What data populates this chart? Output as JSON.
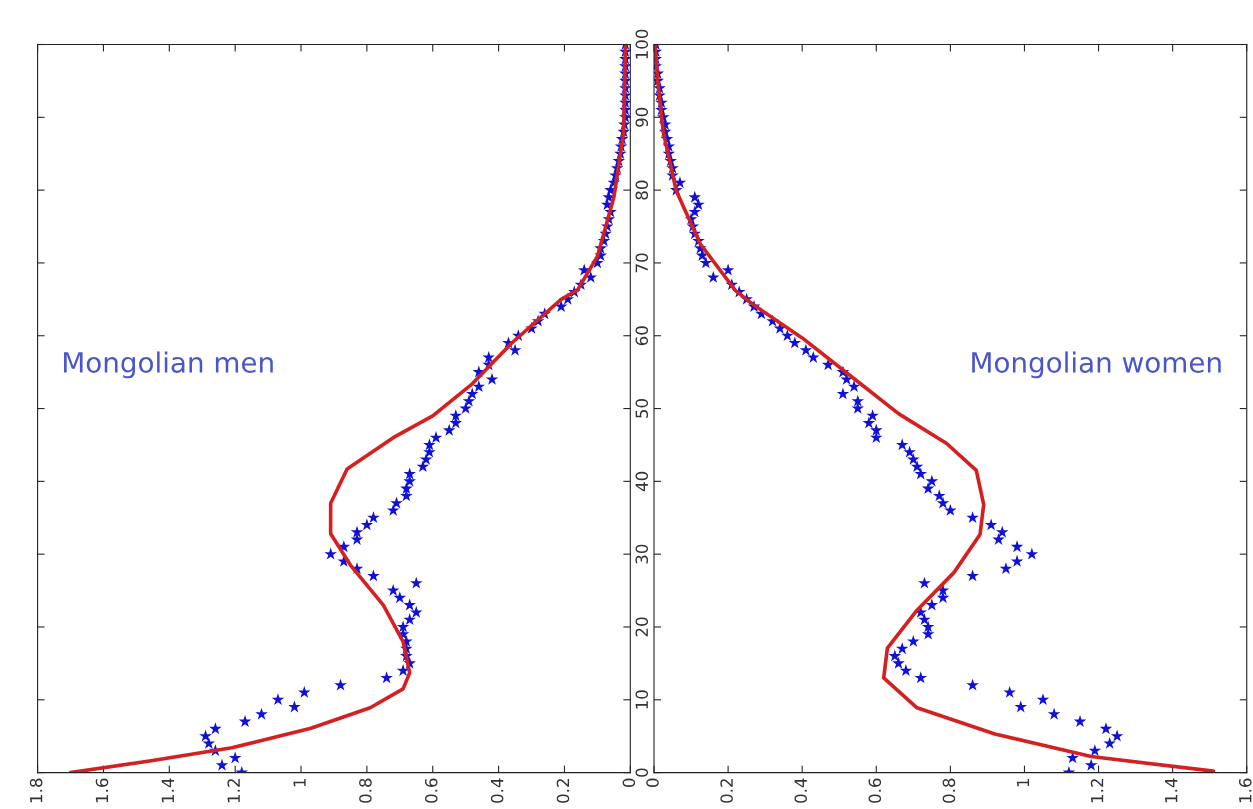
{
  "chart_data": [
    {
      "type": "scatter",
      "orientation": "horizontal",
      "xlim": [
        1.8,
        0
      ],
      "xticks": [
        1.8,
        1.6,
        1.4,
        1.2,
        1,
        0.8,
        0.6,
        0.4,
        0.2,
        0
      ],
      "ylim": [
        0,
        100
      ],
      "yticks": [
        0,
        10,
        20,
        30,
        40,
        50,
        60,
        70,
        80,
        90,
        100
      ],
      "grid": false,
      "legend": false,
      "marker": "star",
      "annotations": [
        "Mongolian men"
      ],
      "series": [
        {
          "color": "#1010d8",
          "x": [
            0,
            1,
            2,
            3,
            4,
            5,
            6,
            7,
            8,
            9,
            10,
            11,
            12,
            13,
            14,
            15,
            16,
            17,
            18,
            19,
            20,
            21,
            22,
            23,
            24,
            25,
            26,
            27,
            28,
            29,
            30,
            31,
            32,
            33,
            34,
            35,
            36,
            37,
            38,
            39,
            40,
            41,
            42,
            43,
            44,
            45,
            46,
            47,
            48,
            49,
            50,
            51,
            52,
            53,
            54,
            55,
            56,
            57,
            58,
            59,
            60,
            61,
            62,
            63,
            64,
            65,
            66,
            67,
            68,
            69,
            70,
            71,
            72,
            73,
            74,
            75,
            76,
            77,
            78,
            79,
            80,
            81,
            82,
            83,
            84,
            85,
            86,
            87,
            88,
            89,
            90,
            91,
            92,
            93,
            94,
            95,
            96,
            97,
            98,
            99,
            100
          ],
          "values": [
            1.18,
            1.24,
            1.2,
            1.26,
            1.28,
            1.29,
            1.26,
            1.17,
            1.12,
            1.02,
            1.07,
            0.99,
            0.88,
            0.74,
            0.69,
            0.67,
            0.68,
            0.68,
            0.68,
            0.69,
            0.69,
            0.67,
            0.65,
            0.67,
            0.7,
            0.72,
            0.65,
            0.78,
            0.83,
            0.87,
            0.91,
            0.87,
            0.83,
            0.83,
            0.8,
            0.78,
            0.72,
            0.71,
            0.68,
            0.68,
            0.67,
            0.67,
            0.63,
            0.62,
            0.61,
            0.61,
            0.59,
            0.55,
            0.53,
            0.53,
            0.5,
            0.49,
            0.48,
            0.46,
            0.42,
            0.46,
            0.43,
            0.43,
            0.35,
            0.37,
            0.34,
            0.3,
            0.28,
            0.26,
            0.21,
            0.19,
            0.17,
            0.15,
            0.12,
            0.14,
            0.1,
            0.09,
            0.09,
            0.08,
            0.075,
            0.07,
            0.065,
            0.06,
            0.07,
            0.065,
            0.06,
            0.05,
            0.045,
            0.04,
            0.035,
            0.03,
            0.028,
            0.025,
            0.02,
            0.018,
            0.015,
            0.015,
            0.015,
            0.015,
            0.015,
            0.015,
            0.015,
            0.015,
            0.015,
            0.015,
            0.015
          ]
        },
        {
          "type": "line",
          "color": "#d42020",
          "line_style": "solid",
          "marker": "none",
          "x": [
            0,
            1.6,
            3.4,
            6.1,
            8.9,
            11.5,
            13.7,
            18,
            23,
            28.5,
            32.8,
            37,
            41.7,
            46,
            49,
            53.4,
            59,
            65,
            66.3,
            70.9,
            79,
            88,
            99.7
          ],
          "values": [
            1.7,
            1.46,
            1.21,
            0.97,
            0.79,
            0.69,
            0.67,
            0.69,
            0.75,
            0.85,
            0.91,
            0.91,
            0.86,
            0.72,
            0.6,
            0.48,
            0.36,
            0.21,
            0.16,
            0.1,
            0.05,
            0.02,
            0.015
          ]
        }
      ]
    },
    {
      "type": "scatter",
      "orientation": "horizontal",
      "xlim": [
        0,
        1.6
      ],
      "xticks": [
        0,
        0.2,
        0.4,
        0.6,
        0.8,
        1,
        1.2,
        1.4,
        1.6
      ],
      "ylim": [
        0,
        100
      ],
      "yticks": [
        {
          "value": 0,
          "label": null
        },
        {
          "value": 10,
          "label": null
        },
        {
          "value": 20,
          "label": null
        },
        {
          "value": 30,
          "label": null
        },
        {
          "value": 40,
          "label": null
        },
        {
          "value": 50,
          "label": null
        },
        {
          "value": 60,
          "label": null
        },
        {
          "value": 70,
          "label": null
        },
        {
          "value": 80,
          "label": null
        },
        {
          "value": 90,
          "label": null
        },
        {
          "value": 100,
          "label": null
        }
      ],
      "tick_labels": "x",
      "grid": false,
      "legend": false,
      "marker": "star",
      "annotations": [
        "Mongolian women"
      ],
      "series": [
        {
          "color": "#1010d8",
          "x": [
            0,
            1,
            2,
            3,
            4,
            5,
            6,
            7,
            8,
            9,
            10,
            11,
            12,
            13,
            14,
            15,
            16,
            17,
            18,
            19,
            20,
            21,
            22,
            23,
            24,
            25,
            26,
            27,
            28,
            29,
            30,
            31,
            32,
            33,
            34,
            35,
            36,
            37,
            38,
            39,
            40,
            41,
            42,
            43,
            44,
            45,
            46,
            47,
            48,
            49,
            50,
            51,
            52,
            53,
            54,
            55,
            56,
            57,
            58,
            59,
            60,
            61,
            62,
            63,
            64,
            65,
            66,
            67,
            68,
            69,
            70,
            71,
            72,
            73,
            74,
            75,
            76,
            77,
            78,
            79,
            80,
            81,
            82,
            83,
            84,
            85,
            86,
            87,
            88,
            89,
            90,
            91,
            92,
            93,
            94,
            95,
            96,
            97,
            98,
            99,
            100
          ],
          "values": [
            1.12,
            1.18,
            1.13,
            1.19,
            1.23,
            1.25,
            1.22,
            1.15,
            1.08,
            0.99,
            1.05,
            0.96,
            0.86,
            0.72,
            0.68,
            0.66,
            0.65,
            0.67,
            0.7,
            0.74,
            0.74,
            0.73,
            0.72,
            0.75,
            0.78,
            0.78,
            0.73,
            0.86,
            0.95,
            0.98,
            1.02,
            0.98,
            0.93,
            0.94,
            0.91,
            0.86,
            0.8,
            0.78,
            0.77,
            0.74,
            0.75,
            0.72,
            0.71,
            0.7,
            0.69,
            0.67,
            0.6,
            0.6,
            0.58,
            0.59,
            0.55,
            0.55,
            0.51,
            0.54,
            0.52,
            0.51,
            0.47,
            0.43,
            0.41,
            0.38,
            0.36,
            0.34,
            0.32,
            0.29,
            0.27,
            0.25,
            0.23,
            0.21,
            0.16,
            0.2,
            0.14,
            0.13,
            0.125,
            0.12,
            0.11,
            0.105,
            0.1,
            0.11,
            0.12,
            0.11,
            0.06,
            0.07,
            0.05,
            0.05,
            0.045,
            0.04,
            0.04,
            0.035,
            0.03,
            0.03,
            0.025,
            0.02,
            0.02,
            0.015,
            0.015,
            0.01,
            0.01,
            0.005,
            0.005,
            0.005,
            0.005
          ]
        },
        {
          "type": "line",
          "color": "#d42020",
          "line_style": "solid",
          "marker": "none",
          "x": [
            0.2,
            2.2,
            5.3,
            8.9,
            13,
            17.1,
            22.3,
            27.5,
            32.7,
            36.8,
            41.5,
            45.2,
            49.3,
            54.5,
            59.7,
            64.2,
            66.2,
            72.6,
            79.9,
            88,
            95,
            100
          ],
          "values": [
            1.51,
            1.18,
            0.92,
            0.71,
            0.62,
            0.63,
            0.71,
            0.81,
            0.88,
            0.89,
            0.87,
            0.79,
            0.66,
            0.53,
            0.4,
            0.27,
            0.22,
            0.125,
            0.06,
            0.025,
            0.01,
            0.003
          ]
        }
      ]
    }
  ]
}
